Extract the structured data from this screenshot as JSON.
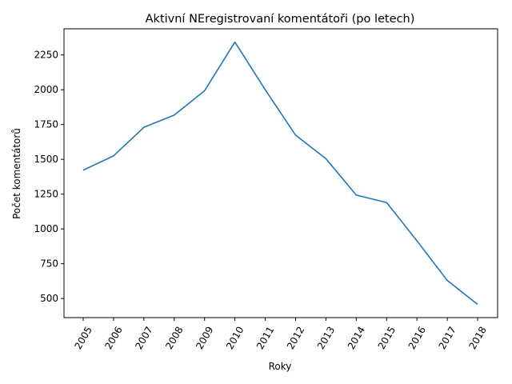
{
  "chart_data": {
    "type": "line",
    "title": "Aktivní NEregistrovaní komentátoři (po letech)",
    "xlabel": "Roky",
    "ylabel": "Počet komentátorů",
    "categories": [
      "2005",
      "2006",
      "2007",
      "2008",
      "2009",
      "2010",
      "2011",
      "2012",
      "2013",
      "2014",
      "2015",
      "2016",
      "2017",
      "2018"
    ],
    "series": [
      {
        "values": [
          1422,
          1525,
          1730,
          1818,
          1993,
          2343,
          2000,
          1674,
          1505,
          1243,
          1190,
          915,
          630,
          458
        ]
      }
    ],
    "yticks": [
      500,
      750,
      1000,
      1250,
      1500,
      1750,
      2000,
      2250
    ],
    "ylim": [
      363,
      2438
    ],
    "grid": false,
    "line_color": "#1f77b4",
    "x_tick_rotation": 60
  }
}
